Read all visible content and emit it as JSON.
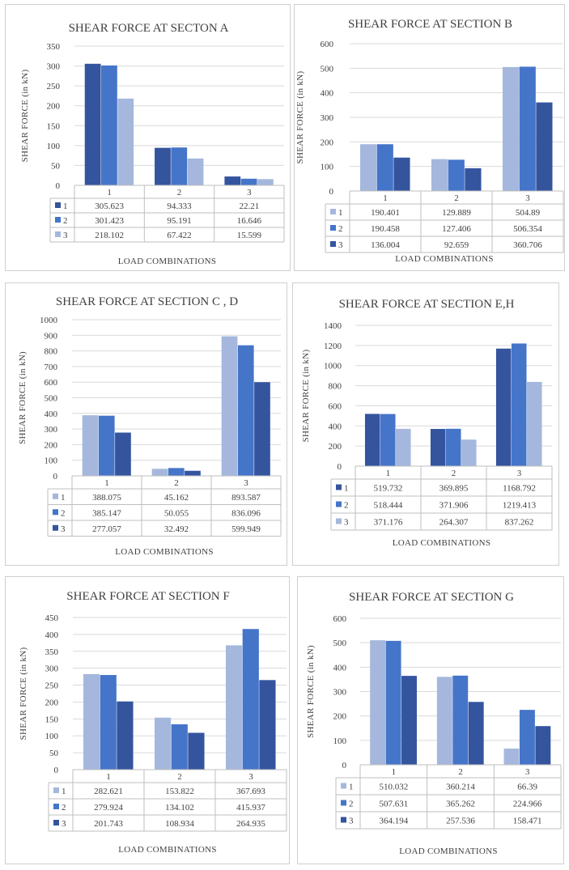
{
  "common": {
    "x_axis_label": "LOAD COMBINATIONS",
    "y_axis_label": "SHEAR FORCE (in kN)",
    "series_names": [
      "1",
      "2",
      "3"
    ]
  },
  "colors": {
    "light": "#a5b7dd",
    "medium": "#4575c9",
    "dark": "#34549e",
    "grid": "#d9d9d9"
  },
  "chart_data": [
    {
      "type": "bar",
      "title": "SHEAR FORCE AT SECTON A",
      "categories": [
        "1",
        "2",
        "3"
      ],
      "xlabel": "LOAD COMBINATIONS",
      "ylabel": "SHEAR FORCE (in kN)",
      "ylim": [
        0,
        350
      ],
      "yticks": [
        0,
        50,
        100,
        150,
        200,
        250,
        300,
        350
      ],
      "series": [
        {
          "name": "1",
          "values": [
            305.623,
            94.333,
            22.21
          ],
          "labels": [
            "305.623",
            "94.333",
            "22.21"
          ],
          "color": "#34549e"
        },
        {
          "name": "2",
          "values": [
            301.423,
            95.191,
            16.646
          ],
          "labels": [
            "301.423",
            "95.191",
            "16.646"
          ],
          "color": "#4575c9"
        },
        {
          "name": "3",
          "values": [
            218.102,
            67.422,
            15.599
          ],
          "labels": [
            "218.102",
            "67.422",
            "15.599"
          ],
          "color": "#a5b7dd"
        }
      ]
    },
    {
      "type": "bar",
      "title": "SHEAR FORCE AT SECTION B",
      "categories": [
        "1",
        "2",
        "3"
      ],
      "xlabel": "LOAD COMBINATIONS",
      "ylabel": "SHEAR FORCE (in kN)",
      "ylim": [
        0,
        600
      ],
      "yticks": [
        0,
        100,
        200,
        300,
        400,
        500,
        600
      ],
      "series": [
        {
          "name": "1",
          "values": [
            190.401,
            129.889,
            504.89
          ],
          "labels": [
            "190.401",
            "129.889",
            "504.89"
          ],
          "color": "#a5b7dd"
        },
        {
          "name": "2",
          "values": [
            190.458,
            127.406,
            506.354
          ],
          "labels": [
            "190.458",
            "127.406",
            "506.354"
          ],
          "color": "#4575c9"
        },
        {
          "name": "3",
          "values": [
            136.004,
            92.659,
            360.706
          ],
          "labels": [
            "136.004",
            "92.659",
            "360.706"
          ],
          "color": "#34549e"
        }
      ]
    },
    {
      "type": "bar",
      "title": "SHEAR FORCE AT SECTION C , D",
      "categories": [
        "1",
        "2",
        "3"
      ],
      "xlabel": "LOAD COMBINATIONS",
      "ylabel": "SHEAR FORCE (in kN)",
      "ylim": [
        0,
        1000
      ],
      "yticks": [
        0,
        100,
        200,
        300,
        400,
        500,
        600,
        700,
        800,
        900,
        1000
      ],
      "series": [
        {
          "name": "1",
          "values": [
            388.075,
            45.162,
            893.587
          ],
          "labels": [
            "388.075",
            "45.162",
            "893.587"
          ],
          "color": "#a5b7dd"
        },
        {
          "name": "2",
          "values": [
            385.147,
            50.055,
            836.096
          ],
          "labels": [
            "385.147",
            "50.055",
            "836.096"
          ],
          "color": "#4575c9"
        },
        {
          "name": "3",
          "values": [
            277.057,
            32.492,
            599.949
          ],
          "labels": [
            "277.057",
            "32.492",
            "599.949"
          ],
          "color": "#34549e"
        }
      ]
    },
    {
      "type": "bar",
      "title": "SHEAR FORCE AT SECTION E,H",
      "categories": [
        "1",
        "2",
        "3"
      ],
      "xlabel": "LOAD COMBINATIONS",
      "ylabel": "SHEAR FORCE (in kN)",
      "ylim": [
        0,
        1400
      ],
      "yticks": [
        0,
        200,
        400,
        600,
        800,
        1000,
        1200,
        1400
      ],
      "series": [
        {
          "name": "1",
          "values": [
            519.732,
            369.895,
            1168.792
          ],
          "labels": [
            "519.732",
            "369.895",
            "1168.792"
          ],
          "color": "#34549e"
        },
        {
          "name": "2",
          "values": [
            518.444,
            371.906,
            1219.413
          ],
          "labels": [
            "518.444",
            "371.906",
            "1219.413"
          ],
          "color": "#4575c9"
        },
        {
          "name": "3",
          "values": [
            371.176,
            264.307,
            837.262
          ],
          "labels": [
            "371.176",
            "264.307",
            "837.262"
          ],
          "color": "#a5b7dd"
        }
      ]
    },
    {
      "type": "bar",
      "title": "SHEAR FORCE AT SECTION F",
      "categories": [
        "1",
        "2",
        "3"
      ],
      "xlabel": "LOAD COMBINATIONS",
      "ylabel": "SHEAR FORCE (in kN)",
      "ylim": [
        0,
        450
      ],
      "yticks": [
        0,
        50,
        100,
        150,
        200,
        250,
        300,
        350,
        400,
        450
      ],
      "series": [
        {
          "name": "1",
          "values": [
            282.621,
            153.822,
            367.693
          ],
          "labels": [
            "282.621",
            "153.822",
            "367.693"
          ],
          "color": "#a5b7dd"
        },
        {
          "name": "2",
          "values": [
            279.924,
            134.102,
            415.937
          ],
          "labels": [
            "279.924",
            "134.102",
            "415.937"
          ],
          "color": "#4575c9"
        },
        {
          "name": "3",
          "values": [
            201.743,
            108.934,
            264.935
          ],
          "labels": [
            "201.743",
            "108.934",
            "264.935"
          ],
          "color": "#34549e"
        }
      ]
    },
    {
      "type": "bar",
      "title": "SHEAR FORCE AT SECTION G",
      "categories": [
        "1",
        "2",
        "3"
      ],
      "xlabel": "LOAD COMBINATIONS",
      "ylabel": "SHEAR  FORCE (in kN)",
      "ylim": [
        0,
        600
      ],
      "yticks": [
        0,
        100,
        200,
        300,
        400,
        500,
        600
      ],
      "series": [
        {
          "name": "1",
          "values": [
            510.032,
            360.214,
            66.39
          ],
          "labels": [
            "510.032",
            "360.214",
            "66.39"
          ],
          "color": "#a5b7dd"
        },
        {
          "name": "2",
          "values": [
            507.631,
            365.262,
            224.966
          ],
          "labels": [
            "507.631",
            "365.262",
            "224.966"
          ],
          "color": "#4575c9"
        },
        {
          "name": "3",
          "values": [
            364.194,
            257.536,
            158.471
          ],
          "labels": [
            "364.194",
            "257.536",
            "158.471"
          ],
          "color": "#34549e"
        }
      ]
    }
  ]
}
